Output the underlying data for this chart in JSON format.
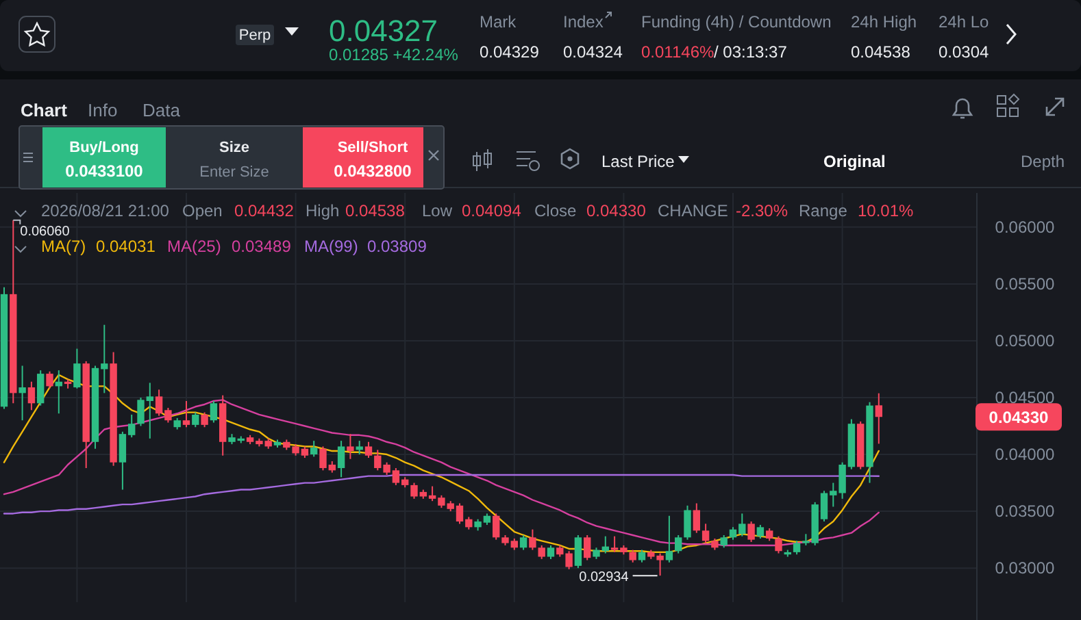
{
  "chart_data": {
    "type": "candlestick",
    "categories": [
      null,
      null,
      null,
      null,
      null,
      null,
      null,
      null,
      null,
      null,
      null,
      null,
      null,
      null,
      null,
      null,
      null,
      null,
      null,
      null,
      null,
      null,
      null,
      null,
      null,
      null,
      null,
      null,
      null,
      null,
      null,
      null,
      null,
      null,
      null,
      null,
      null,
      null,
      null,
      null,
      null,
      null,
      null,
      null,
      null,
      null,
      null,
      null,
      null,
      null,
      null,
      null,
      null,
      null,
      null,
      null,
      null,
      null,
      null,
      null,
      null,
      null,
      null,
      null,
      null,
      null,
      null,
      null,
      null,
      null,
      null,
      null,
      null,
      null,
      null,
      null,
      null,
      null,
      null,
      null,
      null,
      null,
      null,
      null,
      null,
      null,
      null,
      null,
      null,
      null,
      null,
      null,
      null,
      null,
      null,
      null,
      null
    ],
    "ohlc": [
      [
        0.0442,
        0.0547,
        0.044,
        0.0541
      ],
      [
        0.0541,
        0.0606,
        0.0445,
        0.0454
      ],
      [
        0.0454,
        0.0478,
        0.043,
        0.0459
      ],
      [
        0.0459,
        0.0464,
        0.0439,
        0.0445
      ],
      [
        0.0445,
        0.0474,
        0.0443,
        0.0471
      ],
      [
        0.0471,
        0.0473,
        0.0458,
        0.046
      ],
      [
        0.046,
        0.0474,
        0.0436,
        0.0464
      ],
      [
        0.0464,
        0.0466,
        0.0458,
        0.0462
      ],
      [
        0.0459,
        0.0493,
        0.0458,
        0.048
      ],
      [
        0.048,
        0.0482,
        0.0388,
        0.0411
      ],
      [
        0.0411,
        0.0478,
        0.0405,
        0.0476
      ],
      [
        0.0475,
        0.0514,
        0.0454,
        0.048
      ],
      [
        0.048,
        0.049,
        0.039,
        0.0393
      ],
      [
        0.0393,
        0.042,
        0.0369,
        0.0418
      ],
      [
        0.0417,
        0.0435,
        0.0415,
        0.0427
      ],
      [
        0.0427,
        0.045,
        0.0425,
        0.0448
      ],
      [
        0.0447,
        0.0463,
        0.0414,
        0.0451
      ],
      [
        0.0451,
        0.0457,
        0.0434,
        0.0436
      ],
      [
        0.0439,
        0.0441,
        0.0428,
        0.043
      ],
      [
        0.0424,
        0.0432,
        0.0422,
        0.043
      ],
      [
        0.043,
        0.0447,
        0.0424,
        0.0426
      ],
      [
        0.0426,
        0.0437,
        0.0424,
        0.0435
      ],
      [
        0.0435,
        0.0437,
        0.0424,
        0.0426
      ],
      [
        0.043,
        0.0447,
        0.0428,
        0.0445
      ],
      [
        0.0445,
        0.0452,
        0.0399,
        0.0411
      ],
      [
        0.0411,
        0.0418,
        0.0409,
        0.0415
      ],
      [
        0.0412,
        0.0416,
        0.041,
        0.0414
      ],
      [
        0.0415,
        0.0417,
        0.0409,
        0.0411
      ],
      [
        0.0412,
        0.0414,
        0.0407,
        0.0409
      ],
      [
        0.0412,
        0.0414,
        0.0405,
        0.0407
      ],
      [
        0.0408,
        0.0413,
        0.0406,
        0.0411
      ],
      [
        0.0411,
        0.0413,
        0.0404,
        0.0406
      ],
      [
        0.0407,
        0.0409,
        0.0399,
        0.0401
      ],
      [
        0.0405,
        0.0407,
        0.0397,
        0.0399
      ],
      [
        0.04,
        0.0412,
        0.0398,
        0.0406
      ],
      [
        0.0405,
        0.0407,
        0.0386,
        0.0388
      ],
      [
        0.0391,
        0.0394,
        0.0384,
        0.0386
      ],
      [
        0.0388,
        0.0412,
        0.038,
        0.0407
      ],
      [
        0.0407,
        0.0418,
        0.0396,
        0.0403
      ],
      [
        0.0404,
        0.0412,
        0.04,
        0.0407
      ],
      [
        0.0407,
        0.0411,
        0.0397,
        0.0399
      ],
      [
        0.0399,
        0.0404,
        0.0386,
        0.0388
      ],
      [
        0.0391,
        0.0393,
        0.0382,
        0.0384
      ],
      [
        0.0386,
        0.0388,
        0.0373,
        0.0375
      ],
      [
        0.0378,
        0.038,
        0.0371,
        0.0373
      ],
      [
        0.0373,
        0.0375,
        0.0361,
        0.0363
      ],
      [
        0.0367,
        0.0369,
        0.0361,
        0.0363
      ],
      [
        0.0364,
        0.0372,
        0.0359,
        0.0361
      ],
      [
        0.0362,
        0.0364,
        0.0353,
        0.0355
      ],
      [
        0.0357,
        0.0359,
        0.035,
        0.0352
      ],
      [
        0.0355,
        0.0357,
        0.0339,
        0.0341
      ],
      [
        0.0343,
        0.0345,
        0.0334,
        0.0336
      ],
      [
        0.0336,
        0.0343,
        0.0333,
        0.0341
      ],
      [
        0.034,
        0.0348,
        0.0338,
        0.0346
      ],
      [
        0.0346,
        0.0348,
        0.0325,
        0.0327
      ],
      [
        0.0327,
        0.0329,
        0.032,
        0.0322
      ],
      [
        0.0324,
        0.0326,
        0.0316,
        0.0318
      ],
      [
        0.0318,
        0.0329,
        0.0316,
        0.0327
      ],
      [
        0.0327,
        0.0334,
        0.0316,
        0.0318
      ],
      [
        0.0318,
        0.032,
        0.0308,
        0.031
      ],
      [
        0.031,
        0.032,
        0.0308,
        0.0318
      ],
      [
        0.0318,
        0.032,
        0.031,
        0.0312
      ],
      [
        0.0313,
        0.0315,
        0.0299,
        0.0301
      ],
      [
        0.0302,
        0.0329,
        0.03,
        0.0327
      ],
      [
        0.0327,
        0.0329,
        0.0307,
        0.0309
      ],
      [
        0.031,
        0.0318,
        0.0308,
        0.0316
      ],
      [
        0.0315,
        0.0328,
        0.0313,
        0.0319
      ],
      [
        0.0318,
        0.0328,
        0.0314,
        0.0316
      ],
      [
        0.0318,
        0.032,
        0.0312,
        0.0314
      ],
      [
        0.0314,
        0.0316,
        0.0305,
        0.0307
      ],
      [
        0.0307,
        0.0316,
        0.0305,
        0.0314
      ],
      [
        0.0314,
        0.0316,
        0.0308,
        0.031
      ],
      [
        0.0311,
        0.0313,
        0.02934,
        0.0307
      ],
      [
        0.0307,
        0.0346,
        0.0305,
        0.0315
      ],
      [
        0.0315,
        0.0329,
        0.0313,
        0.0327
      ],
      [
        0.0327,
        0.0355,
        0.0325,
        0.0351
      ],
      [
        0.0351,
        0.0357,
        0.0331,
        0.0333
      ],
      [
        0.0333,
        0.0339,
        0.0322,
        0.0324
      ],
      [
        0.0324,
        0.0326,
        0.0316,
        0.0318
      ],
      [
        0.032,
        0.0329,
        0.0318,
        0.0327
      ],
      [
        0.0327,
        0.0336,
        0.0325,
        0.0334
      ],
      [
        0.033,
        0.0348,
        0.0328,
        0.0339
      ],
      [
        0.0339,
        0.0341,
        0.0323,
        0.0325
      ],
      [
        0.0328,
        0.0338,
        0.0326,
        0.0336
      ],
      [
        0.0333,
        0.0335,
        0.0324,
        0.0326
      ],
      [
        0.0326,
        0.0328,
        0.0313,
        0.0315
      ],
      [
        0.0312,
        0.0316,
        0.031,
        0.0314
      ],
      [
        0.0314,
        0.0324,
        0.0312,
        0.0322
      ],
      [
        0.0322,
        0.033,
        0.032,
        0.0324
      ],
      [
        0.0322,
        0.0358,
        0.032,
        0.0356
      ],
      [
        0.0343,
        0.0368,
        0.0341,
        0.0366
      ],
      [
        0.0364,
        0.0375,
        0.0354,
        0.0368
      ],
      [
        0.0366,
        0.0393,
        0.0361,
        0.0391
      ],
      [
        0.0389,
        0.0431,
        0.0387,
        0.0427
      ],
      [
        0.0427,
        0.0429,
        0.0387,
        0.0389
      ],
      [
        0.0389,
        0.0446,
        0.0375,
        0.0443
      ],
      [
        0.04432,
        0.04538,
        0.04094,
        0.0433
      ]
    ],
    "series": [
      {
        "name": "MA(7)",
        "type": "line",
        "color": "#f0b90b",
        "values": [
          0.0393,
          0.0407,
          0.042,
          0.0433,
          0.0446,
          0.0459,
          0.047,
          0.0466,
          0.0463,
          0.046,
          0.046,
          0.046,
          0.0453,
          0.0445,
          0.0439,
          0.0436,
          0.0442,
          0.0438,
          0.0433,
          0.0435,
          0.0437,
          0.0437,
          0.0435,
          0.0433,
          0.0431,
          0.0428,
          0.0425,
          0.0422,
          0.042,
          0.0414,
          0.041,
          0.0409,
          0.0408,
          0.0407,
          0.0407,
          0.0405,
          0.0403,
          0.0403,
          0.0402,
          0.0402,
          0.0401,
          0.0401,
          0.04,
          0.0397,
          0.0393,
          0.039,
          0.0386,
          0.0383,
          0.038,
          0.0376,
          0.0372,
          0.0368,
          0.0361,
          0.0353,
          0.0346,
          0.0339,
          0.0332,
          0.0329,
          0.0326,
          0.0324,
          0.0322,
          0.032,
          0.0317,
          0.0317,
          0.0316,
          0.0315,
          0.0315,
          0.0315,
          0.0315,
          0.0315,
          0.0315,
          0.0314,
          0.0314,
          0.0314,
          0.0316,
          0.0319,
          0.032,
          0.0322,
          0.0324,
          0.0326,
          0.0328,
          0.033,
          0.0329,
          0.0328,
          0.0327,
          0.0326,
          0.0324,
          0.0323,
          0.0323,
          0.0327,
          0.0335,
          0.0341,
          0.0351,
          0.0363,
          0.0373,
          0.0388,
          0.04031
        ]
      },
      {
        "name": "MA(25)",
        "type": "line",
        "color": "#d6409f",
        "values": [
          0.0365,
          0.0367,
          0.037,
          0.0373,
          0.0376,
          0.0379,
          0.0382,
          0.0391,
          0.0398,
          0.0405,
          0.0414,
          0.0422,
          0.0424,
          0.0425,
          0.0426,
          0.0428,
          0.043,
          0.0432,
          0.0434,
          0.0436,
          0.0439,
          0.0442,
          0.0444,
          0.0447,
          0.0448,
          0.0444,
          0.0441,
          0.0438,
          0.0435,
          0.0433,
          0.0431,
          0.0429,
          0.0427,
          0.0425,
          0.0423,
          0.0421,
          0.0419,
          0.0418,
          0.0417,
          0.0417,
          0.0416,
          0.0414,
          0.0411,
          0.0409,
          0.0406,
          0.0402,
          0.0399,
          0.0396,
          0.0393,
          0.0389,
          0.0386,
          0.0383,
          0.038,
          0.0377,
          0.0373,
          0.037,
          0.0367,
          0.0364,
          0.036,
          0.0357,
          0.0354,
          0.0351,
          0.0347,
          0.0344,
          0.034,
          0.0337,
          0.0335,
          0.0333,
          0.0331,
          0.0329,
          0.0327,
          0.0325,
          0.0323,
          0.0322,
          0.0322,
          0.0321,
          0.0321,
          0.0321,
          0.0321,
          0.032,
          0.032,
          0.032,
          0.032,
          0.032,
          0.032,
          0.032,
          0.0321,
          0.0322,
          0.0323,
          0.0324,
          0.0326,
          0.0327,
          0.0329,
          0.0331,
          0.0337,
          0.0342,
          0.03489
        ]
      },
      {
        "name": "MA(99)",
        "type": "line",
        "color": "#a56be0",
        "values": [
          0.0348,
          0.0348,
          0.0349,
          0.0349,
          0.035,
          0.035,
          0.0351,
          0.0351,
          0.0352,
          0.0352,
          0.0353,
          0.0354,
          0.0355,
          0.0356,
          0.0356,
          0.0357,
          0.0358,
          0.0359,
          0.036,
          0.0361,
          0.0362,
          0.0363,
          0.0365,
          0.0366,
          0.0367,
          0.0368,
          0.0369,
          0.0369,
          0.037,
          0.0371,
          0.0372,
          0.0373,
          0.0374,
          0.0375,
          0.0375,
          0.0376,
          0.0377,
          0.0378,
          0.0379,
          0.038,
          0.0381,
          0.0381,
          0.0381,
          0.0382,
          0.0382,
          0.0382,
          0.0382,
          0.0382,
          0.0382,
          0.0382,
          0.0382,
          0.0382,
          0.0382,
          0.0382,
          0.0382,
          0.0382,
          0.0382,
          0.0382,
          0.0382,
          0.0382,
          0.0382,
          0.0382,
          0.0382,
          0.0382,
          0.0382,
          0.0382,
          0.0382,
          0.0382,
          0.0382,
          0.0382,
          0.0382,
          0.0382,
          0.0382,
          0.0382,
          0.0382,
          0.0382,
          0.0382,
          0.0382,
          0.0382,
          0.0382,
          0.0382,
          0.0381,
          0.0381,
          0.0381,
          0.0381,
          0.0381,
          0.0381,
          0.0381,
          0.0381,
          0.0381,
          0.0381,
          0.0381,
          0.0381,
          0.0381,
          0.0381,
          0.0381,
          0.03809
        ]
      }
    ],
    "ylim": [
      0.027,
      0.063
    ],
    "yticks": [
      {
        "value": 0.03,
        "label": "0.03000"
      },
      {
        "value": 0.035,
        "label": "0.03500"
      },
      {
        "value": 0.04,
        "label": "0.04000"
      },
      {
        "value": 0.045,
        "label": "0.04500"
      },
      {
        "value": 0.05,
        "label": "0.05000"
      },
      {
        "value": 0.055,
        "label": "0.05500"
      },
      {
        "value": 0.06,
        "label": "0.06000"
      }
    ],
    "grid": true,
    "legend": "top left",
    "tick_labels": "y",
    "annotations": [
      "0.04327",
      "0.01285 +42.24%",
      "Mark",
      "0.04329",
      "Index",
      "0.04324",
      "Funding (4h) / Countdown",
      "0.01146%",
      "/ 03:13:37",
      "24h High",
      "0.04538",
      "24h Lo",
      "0.0304",
      "Perp",
      "Chart",
      "Info",
      "Data",
      "Buy/Long",
      "0.0433100",
      "Size",
      "Enter Size",
      "Sell/Short",
      "0.0432800",
      "Last Price",
      "Original",
      "Depth",
      "2026/08/21 21:00",
      "Open",
      "0.04432",
      "High",
      "0.04538",
      "Low",
      "0.04094",
      "Close",
      "0.04330",
      "CHANGE",
      "-2.30%",
      "Range",
      "10.01%",
      "0.04031",
      "0.03489",
      "0.03809",
      "0.06060",
      "0.02934",
      "0.04330"
    ]
  }
}
